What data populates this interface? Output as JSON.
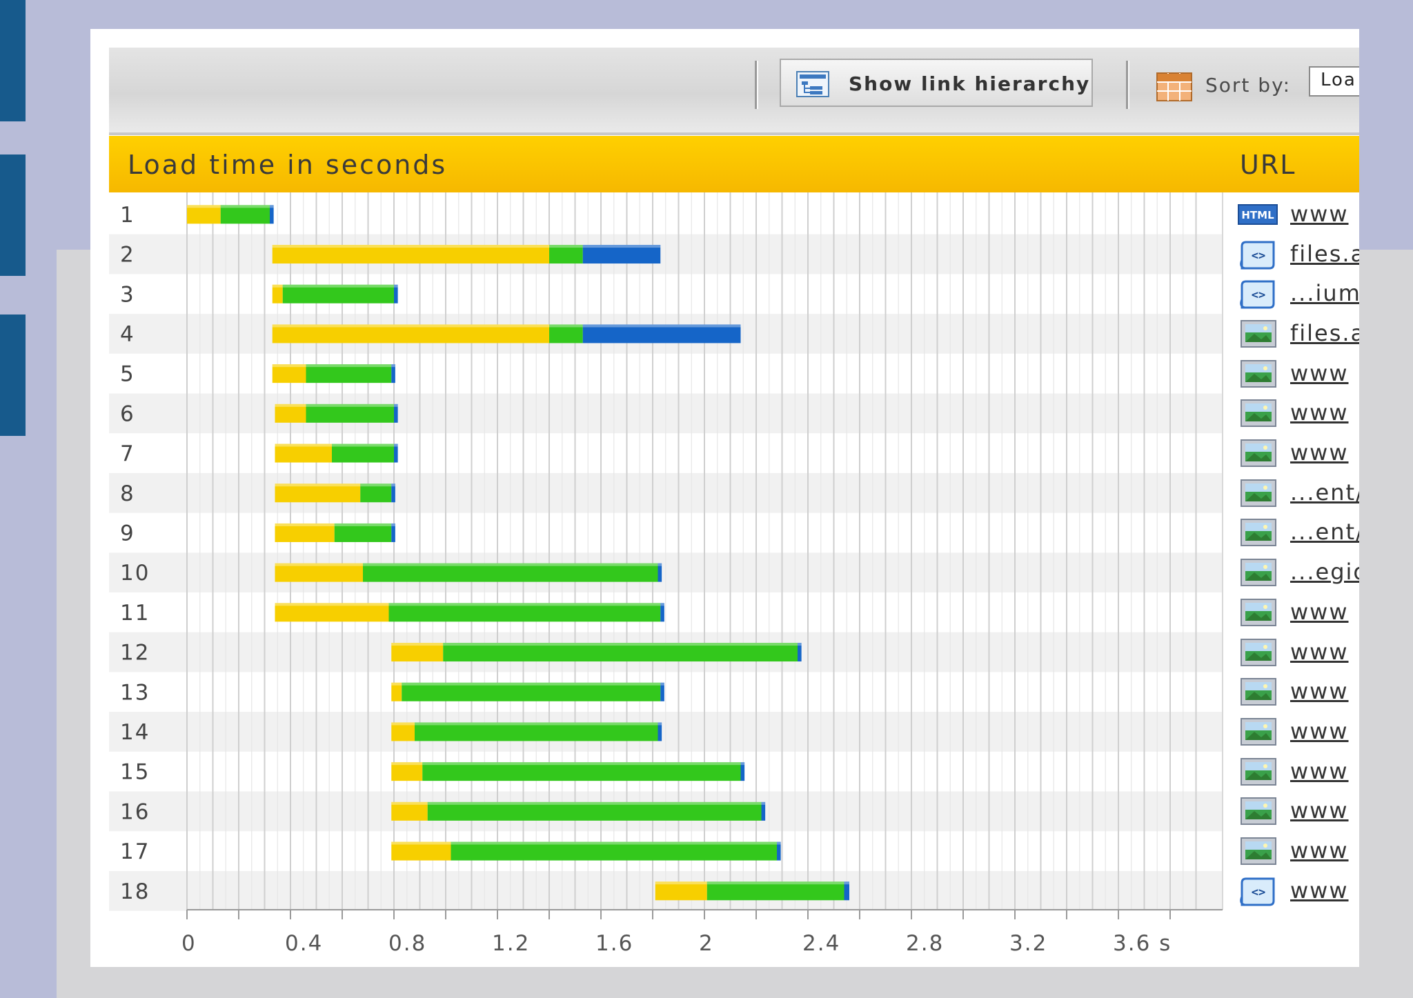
{
  "toolbar": {
    "show_hierarchy_label": "Show link hierarchy",
    "sort_label": "Sort by:",
    "sort_value": "Loa"
  },
  "header": {
    "title": "Load time in seconds",
    "url_col": "URL"
  },
  "urls": [
    {
      "icon": "html-icon",
      "text": "www"
    },
    {
      "icon": "script-icon",
      "text": "files.a"
    },
    {
      "icon": "script-icon",
      "text": "...ium."
    },
    {
      "icon": "image-icon",
      "text": "files.a"
    },
    {
      "icon": "image-icon",
      "text": "www"
    },
    {
      "icon": "image-icon",
      "text": "www"
    },
    {
      "icon": "image-icon",
      "text": "www"
    },
    {
      "icon": "image-icon",
      "text": "...ent/"
    },
    {
      "icon": "image-icon",
      "text": "...ent/"
    },
    {
      "icon": "image-icon",
      "text": "...egio"
    },
    {
      "icon": "image-icon",
      "text": "www"
    },
    {
      "icon": "image-icon",
      "text": "www"
    },
    {
      "icon": "image-icon",
      "text": "www"
    },
    {
      "icon": "image-icon",
      "text": "www"
    },
    {
      "icon": "image-icon",
      "text": "www"
    },
    {
      "icon": "image-icon",
      "text": "www"
    },
    {
      "icon": "image-icon",
      "text": "www"
    },
    {
      "icon": "script-icon",
      "text": "www"
    }
  ],
  "colors": {
    "wait": "#f7cf00",
    "load": "#33c81c",
    "transfer": "#1565c8",
    "header": "#ffd000",
    "background": "#b8bcd8"
  },
  "chart_data": {
    "type": "bar",
    "orientation": "horizontal-stacked-gantt",
    "title": "Load time in seconds",
    "xlabel": "",
    "xlim": [
      0,
      3.95
    ],
    "x_ticks": [
      "0",
      "0.4",
      "0.8",
      "1.2",
      "1.6",
      "2",
      "2.4",
      "2.8",
      "3.2",
      "3.6 s"
    ],
    "x_tick_values": [
      0,
      0.4,
      0.8,
      1.2,
      1.6,
      2.0,
      2.4,
      2.8,
      3.2,
      3.6
    ],
    "categories": [
      "1",
      "2",
      "3",
      "4",
      "5",
      "6",
      "7",
      "8",
      "9",
      "10",
      "11",
      "12",
      "13",
      "14",
      "15",
      "16",
      "17",
      "18"
    ],
    "grid": true,
    "series": [],
    "rows": [
      {
        "label": "1",
        "segments": [
          {
            "start": 0.0,
            "end": 0.13,
            "color": "wait"
          },
          {
            "start": 0.13,
            "end": 0.32,
            "color": "load"
          },
          {
            "start": 0.32,
            "end": 0.335,
            "color": "transfer"
          }
        ]
      },
      {
        "label": "2",
        "segments": [
          {
            "start": 0.33,
            "end": 1.4,
            "color": "wait"
          },
          {
            "start": 1.4,
            "end": 1.53,
            "color": "load"
          },
          {
            "start": 1.53,
            "end": 1.83,
            "color": "transfer"
          }
        ]
      },
      {
        "label": "3",
        "segments": [
          {
            "start": 0.33,
            "end": 0.37,
            "color": "wait"
          },
          {
            "start": 0.37,
            "end": 0.8,
            "color": "load"
          },
          {
            "start": 0.8,
            "end": 0.815,
            "color": "transfer"
          }
        ]
      },
      {
        "label": "4",
        "segments": [
          {
            "start": 0.33,
            "end": 1.4,
            "color": "wait"
          },
          {
            "start": 1.4,
            "end": 1.53,
            "color": "load"
          },
          {
            "start": 1.53,
            "end": 2.14,
            "color": "transfer"
          }
        ]
      },
      {
        "label": "5",
        "segments": [
          {
            "start": 0.33,
            "end": 0.46,
            "color": "wait"
          },
          {
            "start": 0.46,
            "end": 0.79,
            "color": "load"
          },
          {
            "start": 0.79,
            "end": 0.805,
            "color": "transfer"
          }
        ]
      },
      {
        "label": "6",
        "segments": [
          {
            "start": 0.34,
            "end": 0.46,
            "color": "wait"
          },
          {
            "start": 0.46,
            "end": 0.8,
            "color": "load"
          },
          {
            "start": 0.8,
            "end": 0.815,
            "color": "transfer"
          }
        ]
      },
      {
        "label": "7",
        "segments": [
          {
            "start": 0.34,
            "end": 0.56,
            "color": "wait"
          },
          {
            "start": 0.56,
            "end": 0.8,
            "color": "load"
          },
          {
            "start": 0.8,
            "end": 0.815,
            "color": "transfer"
          }
        ]
      },
      {
        "label": "8",
        "segments": [
          {
            "start": 0.34,
            "end": 0.67,
            "color": "wait"
          },
          {
            "start": 0.67,
            "end": 0.79,
            "color": "load"
          },
          {
            "start": 0.79,
            "end": 0.805,
            "color": "transfer"
          }
        ]
      },
      {
        "label": "9",
        "segments": [
          {
            "start": 0.34,
            "end": 0.57,
            "color": "wait"
          },
          {
            "start": 0.57,
            "end": 0.79,
            "color": "load"
          },
          {
            "start": 0.79,
            "end": 0.805,
            "color": "transfer"
          }
        ]
      },
      {
        "label": "10",
        "segments": [
          {
            "start": 0.34,
            "end": 0.68,
            "color": "wait"
          },
          {
            "start": 0.68,
            "end": 1.82,
            "color": "load"
          },
          {
            "start": 1.82,
            "end": 1.835,
            "color": "transfer"
          }
        ]
      },
      {
        "label": "11",
        "segments": [
          {
            "start": 0.34,
            "end": 0.78,
            "color": "wait"
          },
          {
            "start": 0.78,
            "end": 1.83,
            "color": "load"
          },
          {
            "start": 1.83,
            "end": 1.845,
            "color": "transfer"
          }
        ]
      },
      {
        "label": "12",
        "segments": [
          {
            "start": 0.79,
            "end": 0.99,
            "color": "wait"
          },
          {
            "start": 0.99,
            "end": 2.36,
            "color": "load"
          },
          {
            "start": 2.36,
            "end": 2.375,
            "color": "transfer"
          }
        ]
      },
      {
        "label": "13",
        "segments": [
          {
            "start": 0.79,
            "end": 0.83,
            "color": "wait"
          },
          {
            "start": 0.83,
            "end": 1.83,
            "color": "load"
          },
          {
            "start": 1.83,
            "end": 1.845,
            "color": "transfer"
          }
        ]
      },
      {
        "label": "14",
        "segments": [
          {
            "start": 0.79,
            "end": 0.88,
            "color": "wait"
          },
          {
            "start": 0.88,
            "end": 1.82,
            "color": "load"
          },
          {
            "start": 1.82,
            "end": 1.835,
            "color": "transfer"
          }
        ]
      },
      {
        "label": "15",
        "segments": [
          {
            "start": 0.79,
            "end": 0.91,
            "color": "wait"
          },
          {
            "start": 0.91,
            "end": 2.14,
            "color": "load"
          },
          {
            "start": 2.14,
            "end": 2.155,
            "color": "transfer"
          }
        ]
      },
      {
        "label": "16",
        "segments": [
          {
            "start": 0.79,
            "end": 0.93,
            "color": "wait"
          },
          {
            "start": 0.93,
            "end": 2.22,
            "color": "load"
          },
          {
            "start": 2.22,
            "end": 2.235,
            "color": "transfer"
          }
        ]
      },
      {
        "label": "17",
        "segments": [
          {
            "start": 0.79,
            "end": 1.02,
            "color": "wait"
          },
          {
            "start": 1.02,
            "end": 2.28,
            "color": "load"
          },
          {
            "start": 2.28,
            "end": 2.295,
            "color": "transfer"
          }
        ]
      },
      {
        "label": "18",
        "segments": [
          {
            "start": 1.81,
            "end": 2.01,
            "color": "wait"
          },
          {
            "start": 2.01,
            "end": 2.54,
            "color": "load"
          },
          {
            "start": 2.54,
            "end": 2.56,
            "color": "transfer"
          }
        ]
      }
    ]
  }
}
